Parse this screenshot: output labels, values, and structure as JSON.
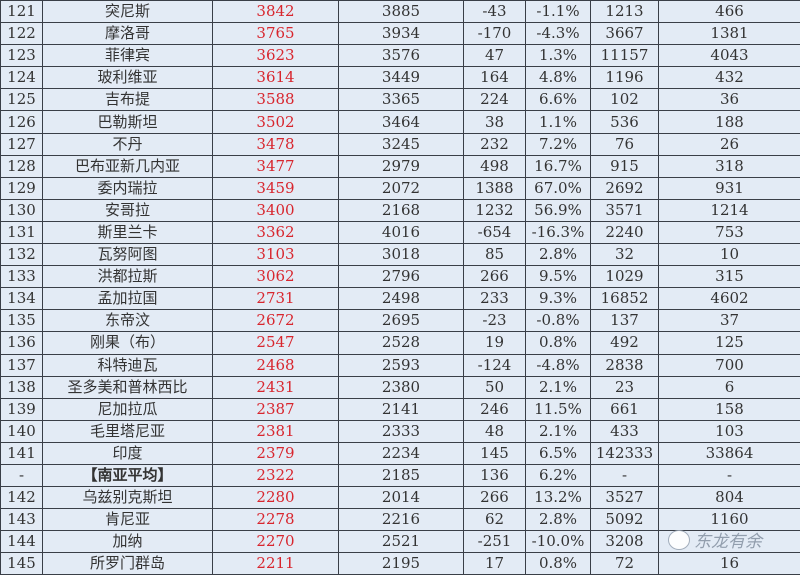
{
  "rows": [
    [
      "121",
      "突尼斯",
      "3842",
      "3885",
      "-43",
      "-1.1%",
      "1213",
      "466"
    ],
    [
      "122",
      "摩洛哥",
      "3765",
      "3934",
      "-170",
      "-4.3%",
      "3667",
      "1381"
    ],
    [
      "123",
      "菲律宾",
      "3623",
      "3576",
      "47",
      "1.3%",
      "11157",
      "4043"
    ],
    [
      "124",
      "玻利维亚",
      "3614",
      "3449",
      "164",
      "4.8%",
      "1196",
      "432"
    ],
    [
      "125",
      "吉布提",
      "3588",
      "3365",
      "224",
      "6.6%",
      "102",
      "36"
    ],
    [
      "126",
      "巴勒斯坦",
      "3502",
      "3464",
      "38",
      "1.1%",
      "536",
      "188"
    ],
    [
      "127",
      "不丹",
      "3478",
      "3245",
      "232",
      "7.2%",
      "76",
      "26"
    ],
    [
      "128",
      "巴布亚新几内亚",
      "3477",
      "2979",
      "498",
      "16.7%",
      "915",
      "318"
    ],
    [
      "129",
      "委内瑞拉",
      "3459",
      "2072",
      "1388",
      "67.0%",
      "2692",
      "931"
    ],
    [
      "130",
      "安哥拉",
      "3400",
      "2168",
      "1232",
      "56.9%",
      "3571",
      "1214"
    ],
    [
      "131",
      "斯里兰卡",
      "3362",
      "4016",
      "-654",
      "-16.3%",
      "2240",
      "753"
    ],
    [
      "132",
      "瓦努阿图",
      "3103",
      "3018",
      "85",
      "2.8%",
      "32",
      "10"
    ],
    [
      "133",
      "洪都拉斯",
      "3062",
      "2796",
      "266",
      "9.5%",
      "1029",
      "315"
    ],
    [
      "134",
      "孟加拉国",
      "2731",
      "2498",
      "233",
      "9.3%",
      "16852",
      "4602"
    ],
    [
      "135",
      "东帝汶",
      "2672",
      "2695",
      "-23",
      "-0.8%",
      "137",
      "37"
    ],
    [
      "136",
      "刚果（布）",
      "2547",
      "2528",
      "19",
      "0.8%",
      "492",
      "125"
    ],
    [
      "137",
      "科特迪瓦",
      "2468",
      "2593",
      "-124",
      "-4.8%",
      "2838",
      "700"
    ],
    [
      "138",
      "圣多美和普林西比",
      "2431",
      "2380",
      "50",
      "2.1%",
      "23",
      "6"
    ],
    [
      "139",
      "尼加拉瓜",
      "2387",
      "2141",
      "246",
      "11.5%",
      "661",
      "158"
    ],
    [
      "140",
      "毛里塔尼亚",
      "2381",
      "2333",
      "48",
      "2.1%",
      "433",
      "103"
    ],
    [
      "141",
      "印度",
      "2379",
      "2234",
      "145",
      "6.5%",
      "142333",
      "33864"
    ],
    [
      "-",
      "【南亚平均】",
      "2322",
      "2185",
      "136",
      "6.2%",
      "-",
      "-"
    ],
    [
      "142",
      "乌兹别克斯坦",
      "2280",
      "2014",
      "266",
      "13.2%",
      "3527",
      "804"
    ],
    [
      "143",
      "肯尼亚",
      "2278",
      "2216",
      "62",
      "2.8%",
      "5092",
      "1160"
    ],
    [
      "144",
      "加纳",
      "2270",
      "2521",
      "-251",
      "-10.0%",
      "3208",
      ""
    ],
    [
      "145",
      "所罗门群岛",
      "2211",
      "2195",
      "17",
      "0.8%",
      "72",
      "16"
    ]
  ],
  "watermark": "东龙有余",
  "colors": {
    "highlight": "#d8262e",
    "background": "#e3ebf5",
    "border": "#3a3f47"
  }
}
